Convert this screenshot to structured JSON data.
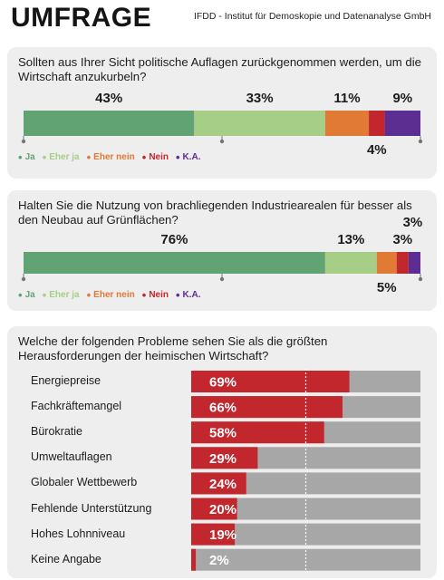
{
  "header": {
    "title": "UMFRAGE",
    "source": "IFDD - Institut für Demoskopie und Datenanalyse GmbH"
  },
  "colors": {
    "ja": "#62a374",
    "eher_ja": "#a7ce86",
    "eher_nein": "#e07a35",
    "nein": "#c1272d",
    "ka": "#5c2e91",
    "problem_bar": "#c1272d",
    "problem_track": "#a7a7a7"
  },
  "chart_data": [
    {
      "type": "bar",
      "stacked": true,
      "orientation": "horizontal",
      "question": "Sollten aus Ihrer Sicht politische Auflagen zurückgenommen werden, um die Wirtschaft anzukurbeln?",
      "categories": [
        "Ja",
        "Eher ja",
        "Eher nein",
        "Nein",
        "K.A."
      ],
      "values": [
        43,
        33,
        11,
        4,
        9
      ],
      "data_labels": [
        "43%",
        "33%",
        "11%",
        "4%",
        "9%"
      ],
      "xlim": [
        0,
        100
      ],
      "legend": "bottom-left"
    },
    {
      "type": "bar",
      "stacked": true,
      "orientation": "horizontal",
      "question": "Halten Sie die Nutzung von brachliegenden Industriearealen für besser als den Neubau auf Grünflächen?",
      "categories": [
        "Ja",
        "Eher ja",
        "Eher nein",
        "Nein",
        "K.A."
      ],
      "values": [
        76,
        13,
        5,
        3,
        3
      ],
      "data_labels": [
        "76%",
        "13%",
        "5%",
        "3%",
        "3%"
      ],
      "xlim": [
        0,
        100
      ],
      "legend": "bottom-left"
    },
    {
      "type": "bar",
      "orientation": "horizontal",
      "question": "Welche der folgenden Probleme sehen Sie als die größten Herausforderungen der heimischen Wirtschaft?",
      "categories": [
        "Energiepreise",
        "Fachkräftemangel",
        "Bürokratie",
        "Umweltauflagen",
        "Globaler Wettbewerb",
        "Fehlende Unterstützung",
        "Hohes Lohnniveau",
        "Keine Angabe"
      ],
      "values": [
        69,
        66,
        58,
        29,
        24,
        20,
        19,
        2
      ],
      "data_labels": [
        "69%",
        "66%",
        "58%",
        "29%",
        "24%",
        "20%",
        "19%",
        "2%"
      ],
      "xlim": [
        0,
        100
      ],
      "reference_line": 50
    }
  ]
}
